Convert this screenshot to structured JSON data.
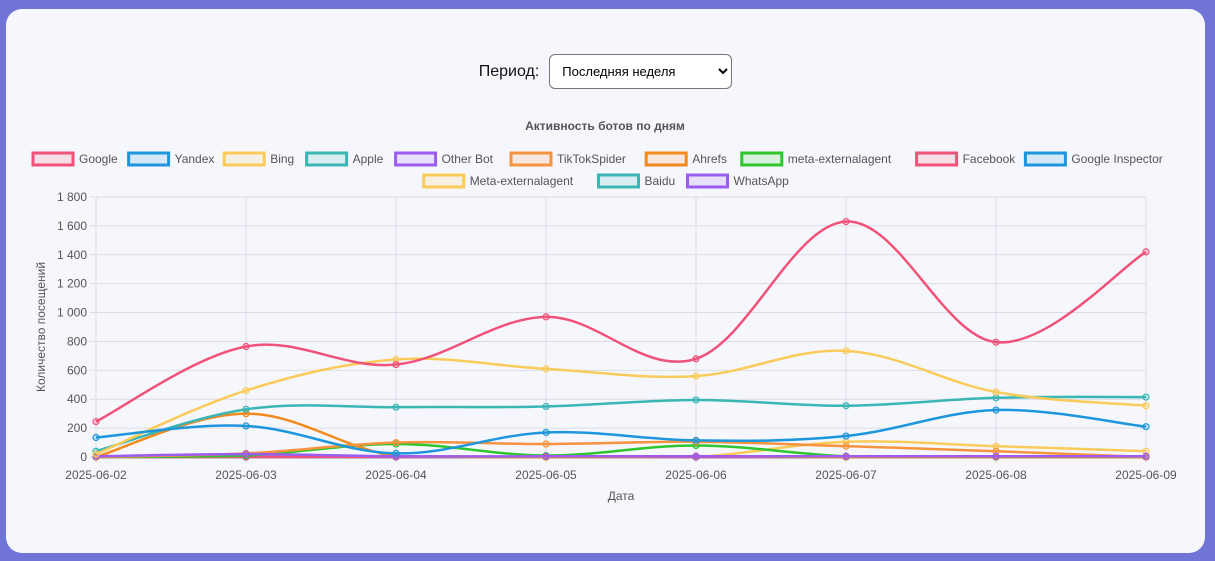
{
  "filter": {
    "label": "Период:",
    "selected": "Последняя неделя"
  },
  "chart_data": {
    "type": "line",
    "title": "Активность ботов по дням",
    "xlabel": "Дата",
    "ylabel": "Количество посещений",
    "ylim": [
      0,
      1800
    ],
    "y_ticks": [
      "0",
      "200",
      "400",
      "600",
      "800",
      "1 000",
      "1 200",
      "1 400",
      "1 600",
      "1 800"
    ],
    "categories": [
      "2025-06-02",
      "2025-06-03",
      "2025-06-04",
      "2025-06-05",
      "2025-06-06",
      "2025-06-07",
      "2025-06-08",
      "2025-06-09"
    ],
    "grid": true,
    "legend": "top",
    "series": [
      {
        "name": "Google",
        "color": "#f0527a",
        "values": [
          245,
          765,
          640,
          970,
          680,
          1630,
          795,
          1420
        ]
      },
      {
        "name": "Yandex",
        "color": "#1e96dc",
        "values": [
          135,
          215,
          25,
          170,
          115,
          145,
          325,
          210
        ]
      },
      {
        "name": "Bing",
        "color": "#fbcb5a",
        "values": [
          20,
          460,
          675,
          610,
          560,
          735,
          450,
          355
        ]
      },
      {
        "name": "Apple",
        "color": "#3ab6b4",
        "values": [
          40,
          330,
          345,
          350,
          395,
          355,
          410,
          415
        ]
      },
      {
        "name": "Other Bot",
        "color": "#9b5cf2",
        "values": [
          5,
          20,
          5,
          5,
          5,
          5,
          5,
          5
        ]
      },
      {
        "name": "TikTokSpider",
        "color": "#f6933e",
        "values": [
          0,
          25,
          100,
          90,
          105,
          75,
          40,
          0
        ]
      },
      {
        "name": "Ahrefs",
        "color": "#f28a1e",
        "values": [
          0,
          300,
          5,
          0,
          5,
          0,
          0,
          0
        ]
      },
      {
        "name": "meta-externalagent",
        "color": "#2ec62e",
        "values": [
          0,
          10,
          90,
          10,
          80,
          5,
          0,
          0
        ]
      },
      {
        "name": "Facebook",
        "color": "#f0527a",
        "values": [
          0,
          0,
          0,
          0,
          0,
          0,
          0,
          0
        ]
      },
      {
        "name": "Google Inspector",
        "color": "#1e96dc",
        "values": [
          0,
          0,
          0,
          0,
          0,
          0,
          0,
          0
        ]
      },
      {
        "name": "Meta-externalagent",
        "color": "#fbcb5a",
        "values": [
          0,
          0,
          5,
          0,
          0,
          105,
          75,
          40
        ]
      },
      {
        "name": "Baidu",
        "color": "#3ab6b4",
        "values": [
          0,
          0,
          0,
          0,
          0,
          0,
          0,
          0
        ]
      },
      {
        "name": "WhatsApp",
        "color": "#9b5cf2",
        "values": [
          0,
          0,
          0,
          0,
          0,
          0,
          0,
          0
        ]
      }
    ]
  }
}
